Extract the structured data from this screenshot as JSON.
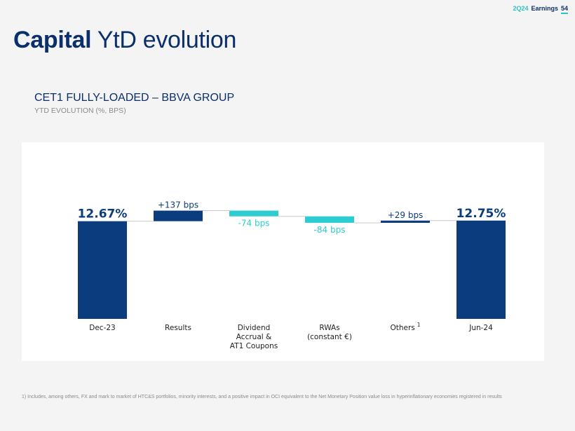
{
  "header": {
    "report": "2Q24",
    "report_label": "Earnings",
    "page_number": "54"
  },
  "title": {
    "bold": "Capital",
    "rest": "YtD evolution"
  },
  "colors": {
    "navy": "#0b3c7d",
    "teal": "#2ccdd2",
    "connector": "#c8c8c8",
    "text": "#1f1f1f"
  },
  "chart_data": {
    "type": "bar",
    "subtype": "waterfall",
    "title": "CET1 FULLY-LOADED – BBVA GROUP",
    "subtitle": "YTD EVOLUTION (%, BPS)",
    "unit": "%",
    "items": [
      {
        "category": "Dec-23",
        "kind": "total",
        "value": 12.67,
        "label": "12.67%",
        "color": "#0b3c7d"
      },
      {
        "category": "Results",
        "kind": "delta",
        "value": 137,
        "label": "+137 bps",
        "color": "#0b3c7d"
      },
      {
        "category": "Dividend\nAccrual  &\nAT1 Coupons",
        "kind": "delta",
        "value": -74,
        "label": "-74 bps",
        "color": "#2ccdd2"
      },
      {
        "category": "RWAs\n(constant €)",
        "kind": "delta",
        "value": -84,
        "label": "-84 bps",
        "color": "#2ccdd2"
      },
      {
        "category": "Others",
        "category_sup": "1",
        "kind": "delta",
        "value": 29,
        "label": "+29 bps",
        "color": "#0b3c7d"
      },
      {
        "category": "Jun-24",
        "kind": "total",
        "value": 12.75,
        "label": "12.75%",
        "color": "#0b3c7d"
      }
    ]
  },
  "footnote": "1) Includes, among others, FX and mark to market of HTC&S portfolios, minority interests, and a positive impact in OCI equivalent to the Net Monetary Position value loss in hyperinflationary economies registered in results"
}
